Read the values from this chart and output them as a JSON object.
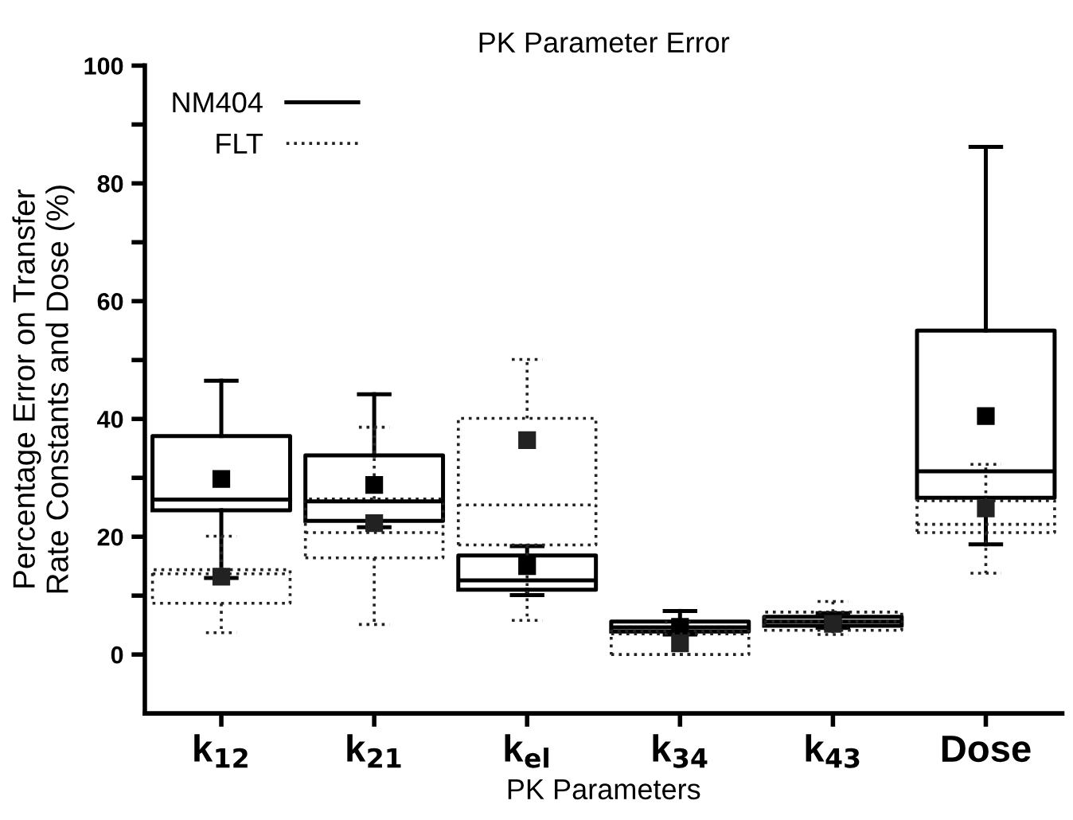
{
  "chart_data": {
    "type": "box",
    "title": "PK Parameter Error",
    "xlabel": "PK Parameters",
    "ylabel": "Percentage Error on Transfer\nRate Constants and Dose (%)",
    "categories": [
      "k$_{12}$",
      "k$_{21}$",
      "k$_{el}$",
      "k$_{34}$",
      "k$_{43}$",
      "Dose"
    ],
    "ylim": [
      -10,
      100
    ],
    "yticks": [
      0,
      {
        "value": 10,
        "label": null
      },
      20,
      {
        "value": 30,
        "label": null
      },
      40,
      {
        "value": 50,
        "label": null
      },
      60,
      {
        "value": 70,
        "label": null
      },
      80,
      {
        "value": 90,
        "label": null
      },
      100
    ],
    "legend": "top left",
    "grid": false,
    "marker": "square",
    "series": [
      {
        "name": "NM404",
        "color": "#000000",
        "line_style": "solid",
        "boxes": [
          {
            "low": 13,
            "q1": 24.5,
            "median": 26.3,
            "q3": 37.1,
            "high": 46.5,
            "mean": 29.8
          },
          {
            "low": 21.6,
            "q1": 22.7,
            "median": 26.0,
            "q3": 33.8,
            "high": 44.2,
            "mean": 28.8
          },
          {
            "low": 10.1,
            "q1": 11.0,
            "median": 12.6,
            "q3": 16.8,
            "high": 18.4,
            "mean": 15.0
          },
          {
            "low": 3.4,
            "q1": 3.9,
            "median": 4.6,
            "q3": 5.6,
            "high": 7.4,
            "mean": 4.7
          },
          {
            "low": 4.5,
            "q1": 4.9,
            "median": 5.6,
            "q3": 6.4,
            "high": 7.0,
            "mean": 5.6
          },
          {
            "low": 18.7,
            "q1": 26.6,
            "median": 31.1,
            "q3": 55.0,
            "high": 86.2,
            "mean": 40.5
          }
        ]
      },
      {
        "name": "FLT",
        "color": "#222222",
        "line_style": "dotted",
        "boxes": [
          {
            "low": 3.7,
            "q1": 8.7,
            "median": 13.7,
            "q3": 14.4,
            "high": 20.1,
            "mean": 13.2
          },
          {
            "low": 5.1,
            "q1": 16.4,
            "median": 20.7,
            "q3": 26.4,
            "high": 38.6,
            "mean": 22.3
          },
          {
            "low": 5.8,
            "q1": 18.6,
            "median": 25.4,
            "q3": 40.1,
            "high": 50.1,
            "mean": 36.4
          },
          {
            "low": 0,
            "q1": 0,
            "median": 3.5,
            "q3": 4.0,
            "high": 5.5,
            "mean": 1.9
          },
          {
            "low": 3.4,
            "q1": 4.1,
            "median": 5.6,
            "q3": 7.2,
            "high": 9.0,
            "mean": 5.2
          },
          {
            "low": 13.8,
            "q1": 20.7,
            "median": 22.1,
            "q3": 26.1,
            "high": 32.3,
            "mean": 24.8
          }
        ]
      }
    ]
  }
}
